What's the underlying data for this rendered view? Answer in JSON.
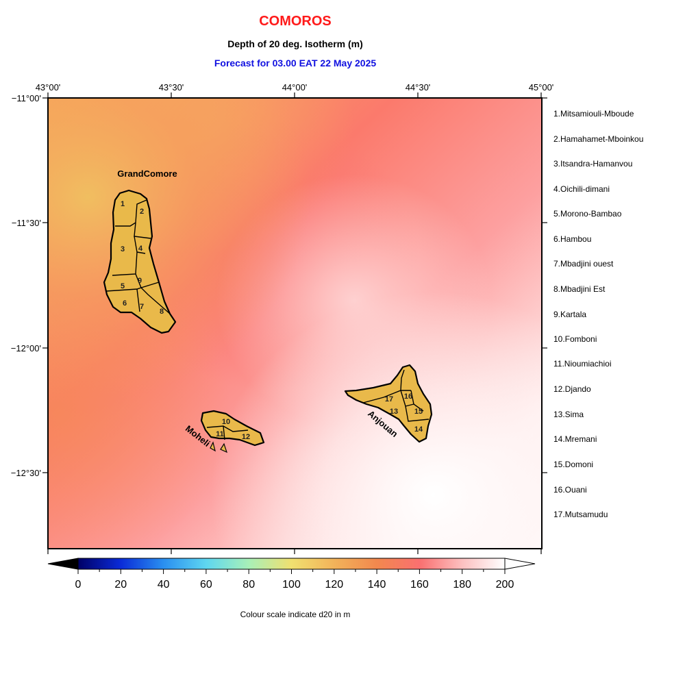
{
  "title": "COMOROS",
  "subtitle": "Depth of 20 deg. Isotherm (m)",
  "forecast": "Forecast for  03.00 EAT 22 May 2025",
  "caption": "Colour scale indicate d20 in m",
  "lon_labels": [
    "43°00'",
    "43°30'",
    "44°00'",
    "44°30'",
    "45°00'"
  ],
  "lat_labels": [
    "−11°00'",
    "−11°30'",
    "−12°00'",
    "−12°30'"
  ],
  "island_names": {
    "grand_comore": "GrandComore",
    "moheli": "Moheli",
    "anjouan": "Anjouan"
  },
  "region_numbers": [
    "1",
    "2",
    "3",
    "4",
    "5",
    "6",
    "7",
    "8",
    "9",
    "10",
    "11",
    "12",
    "13",
    "14",
    "15",
    "16",
    "17"
  ],
  "regions": [
    "1.Mitsamiouli-Mboude",
    "2.Hamahamet-Mboinkou",
    "3.Itsandra-Hamanvou",
    "4.Oichili-dimani",
    "5.Morono-Bambao",
    "6.Hambou",
    "7.Mbadjini ouest",
    "8.Mbadjini Est",
    "9.Kartala",
    "10.Fomboni",
    "11.Nioumiachioi",
    "12.Djando",
    "13.Sima",
    "14.Mremani",
    "15.Domoni",
    "16.Ouani",
    "17.Mutsamudu"
  ],
  "colorbar": {
    "ticks": [
      "0",
      "20",
      "40",
      "60",
      "80",
      "100",
      "120",
      "140",
      "160",
      "180",
      "200"
    ],
    "range": [
      0,
      200
    ],
    "stops": [
      "#000066",
      "#0a2bd8",
      "#2a8ff0",
      "#5ed6f0",
      "#a8f0b8",
      "#f0e070",
      "#f2b35a",
      "#f2884e",
      "#fa7070",
      "#fcc0c0",
      "#ffffff"
    ]
  },
  "colors": {
    "land": "#e9b94a",
    "title": "#ff1a1a",
    "forecast": "#1010e0"
  }
}
